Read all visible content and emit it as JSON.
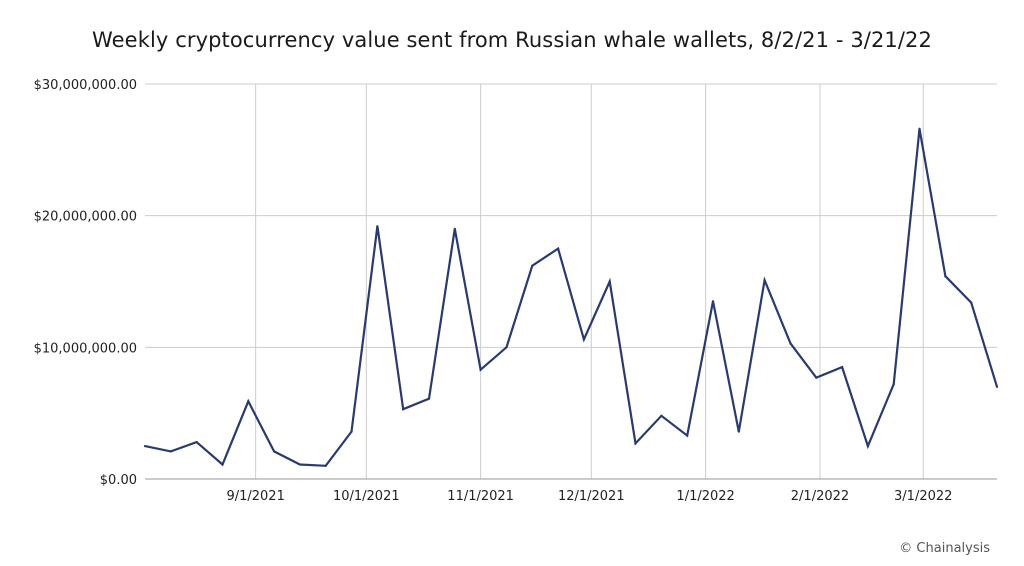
{
  "chart_data": {
    "type": "line",
    "title": "Weekly cryptocurrency value sent from Russian whale wallets, 8/2/21 - 3/21/22",
    "xlabel": "",
    "ylabel": "",
    "ylim": [
      0,
      30000000
    ],
    "y_ticks": [
      {
        "value": 0,
        "label": "$0.00"
      },
      {
        "value": 10000000,
        "label": "$10,000,000.00"
      },
      {
        "value": 20000000,
        "label": "$20,000,000.00"
      },
      {
        "value": 30000000,
        "label": "$30,000,000.00"
      }
    ],
    "xlim": [
      "2021-08-02",
      "2022-03-21"
    ],
    "x_ticks": [
      {
        "date": "2021-09-01",
        "label": "9/1/2021"
      },
      {
        "date": "2021-10-01",
        "label": "10/1/2021"
      },
      {
        "date": "2021-11-01",
        "label": "11/1/2021"
      },
      {
        "date": "2021-12-01",
        "label": "12/1/2021"
      },
      {
        "date": "2022-01-01",
        "label": "1/1/2022"
      },
      {
        "date": "2022-02-01",
        "label": "2/1/2022"
      },
      {
        "date": "2022-03-01",
        "label": "3/1/2022"
      }
    ],
    "grid": {
      "vertical": true,
      "horizontal": true
    },
    "line_color": "#2b3a6e",
    "grid_color": "#cccccc",
    "series": [
      {
        "x": [
          "2021-08-02",
          "2021-08-09",
          "2021-08-16",
          "2021-08-23",
          "2021-08-30",
          "2021-09-06",
          "2021-09-13",
          "2021-09-20",
          "2021-09-27",
          "2021-10-04",
          "2021-10-11",
          "2021-10-18",
          "2021-10-25",
          "2021-11-01",
          "2021-11-08",
          "2021-11-15",
          "2021-11-22",
          "2021-11-29",
          "2021-12-06",
          "2021-12-13",
          "2021-12-20",
          "2021-12-27",
          "2022-01-03",
          "2022-01-10",
          "2022-01-17",
          "2022-01-24",
          "2022-01-31",
          "2022-02-07",
          "2022-02-14",
          "2022-02-21",
          "2022-02-28",
          "2022-03-07",
          "2022-03-14",
          "2022-03-21"
        ],
        "values": [
          2500000,
          2100000,
          2800000,
          1100000,
          5900000,
          2100000,
          1100000,
          1000000,
          3600000,
          19200000,
          5300000,
          6100000,
          19000000,
          8300000,
          10000000,
          16200000,
          17500000,
          10600000,
          15000000,
          2700000,
          4800000,
          3300000,
          13500000,
          3600000,
          15100000,
          10300000,
          7700000,
          8500000,
          2500000,
          7200000,
          26600000,
          15400000,
          13400000,
          7000000
        ]
      }
    ]
  },
  "credit": "© Chainalysis"
}
